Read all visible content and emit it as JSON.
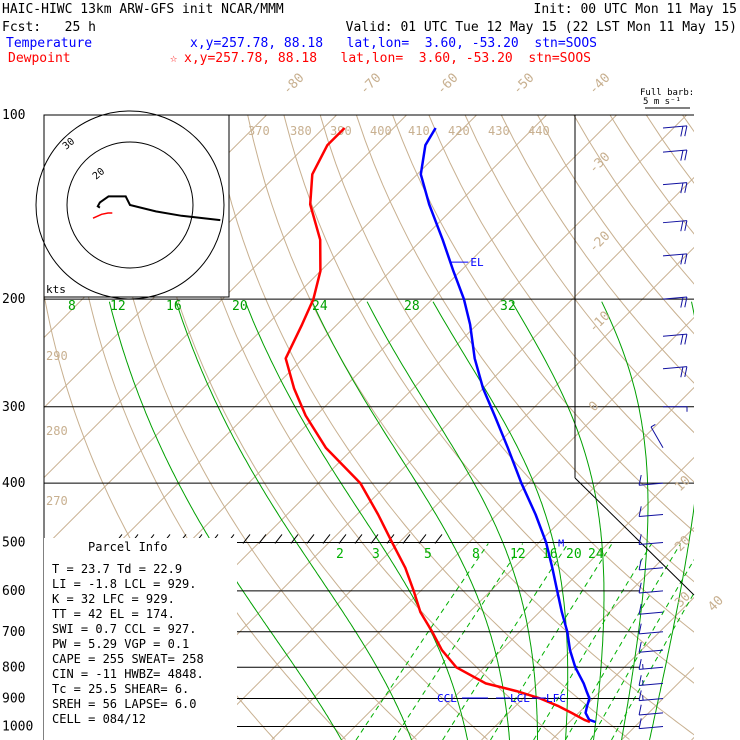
{
  "header": {
    "model": "HAIC-HIWC 13km ARW-GFS init  NCAR/MMM",
    "init": "Init: 00 UTC Mon 11 May 15",
    "fcst": "Fcst:   25 h",
    "valid": "Valid: 01 UTC Tue 12 May 15 (22 LST Mon 11 May 15)",
    "temp_label": "Temperature",
    "temp_info": "x,y=257.78, 88.18   lat,lon=  3.60, -53.20  stn=SOOS",
    "dew_label": "Dewpoint",
    "dew_marker": "☆",
    "dew_info": "x,y=257.78, 88.18   lat,lon=  3.60, -53.20  stn=SOOS"
  },
  "colors": {
    "temperature": "#0000ff",
    "dewpoint": "#ff0000",
    "isotherm": "#c8b090",
    "theta": "#c8b090",
    "moist_adiabat": "#00a000",
    "mixing_ratio": "#00b000",
    "wind": "#1010a0",
    "grid": "#000000"
  },
  "hodograph": {
    "ring_labels": [
      "30",
      "20"
    ],
    "unit": "kts"
  },
  "parcel": {
    "title": "Parcel Info",
    "rows": [
      "T  =   23.7  Td =  22.9",
      "LI =   -1.8  LCL =  929.",
      "K  =     32  LFC =  929.",
      "TT =     42  EL  =  174.",
      "SWI =   0.7  CCL =  927.",
      "PW =   5.29  VGP =   0.1",
      "CAPE =  255  SWEAT=  258",
      "CIN =   -11  HWBZ= 4848.",
      "Tc =   25.5  SHEAR=    6.",
      "SREH =   56  LAPSE=  6.0",
      "CELL = 084/12"
    ]
  },
  "barb_legend": {
    "title": "Full barb:",
    "units": "5 m s⁻¹"
  },
  "markers": {
    "el": "EL",
    "m": "M",
    "ccl": "CCL",
    "lcl": "LCL",
    "lfc": "LFC"
  },
  "chart_data": {
    "type": "line",
    "title": "HAIC-HIWC 13km ARW-GFS init  NCAR/MMM",
    "xlabel": "",
    "ylabel": "",
    "y_scale": "log",
    "pressure_levels": [
      "100",
      "200",
      "300",
      "400",
      "500",
      "600",
      "700",
      "800",
      "900",
      "1000"
    ],
    "isotherm_labels": [
      "-80",
      "-70",
      "-60",
      "-50",
      "-40",
      "-30",
      "-20",
      "-10",
      "0",
      "10",
      "20",
      "30",
      "40"
    ],
    "theta_labels": [
      "370",
      "380",
      "390",
      "400",
      "410",
      "420",
      "430",
      "440",
      "290",
      "280",
      "270"
    ],
    "mixing_ratio_labels_top": [
      "8",
      "12",
      "16",
      "20",
      "24",
      "28",
      "32"
    ],
    "mixing_ratio_labels_lower": [
      "2",
      "3",
      "5",
      "8",
      "12",
      "16",
      "20",
      "24"
    ],
    "series": [
      {
        "name": "Temperature",
        "pressure_hPa": [
          983,
          975,
          950,
          925,
          900,
          875,
          850,
          800,
          750,
          700,
          650,
          600,
          550,
          500,
          450,
          400,
          350,
          310,
          280,
          250,
          220,
          200,
          180,
          160,
          140,
          125,
          112,
          105
        ],
        "temp_C": [
          23.7,
          22.5,
          21.0,
          20.2,
          19.5,
          18.0,
          16.5,
          13.0,
          9.8,
          6.8,
          3.2,
          -0.5,
          -4.5,
          -9.0,
          -14.5,
          -21.0,
          -28.0,
          -34.5,
          -40.0,
          -45.5,
          -51.0,
          -55.5,
          -61.0,
          -67.0,
          -74.0,
          -79.5,
          -83.0,
          -84.0
        ]
      },
      {
        "name": "Dewpoint",
        "pressure_hPa": [
          983,
          975,
          950,
          925,
          900,
          875,
          850,
          800,
          750,
          700,
          650,
          600,
          550,
          500,
          450,
          400,
          350,
          310,
          280,
          250,
          220,
          200,
          180,
          160,
          140,
          125,
          112,
          105
        ],
        "temp_C": [
          22.9,
          21.8,
          19.0,
          16.0,
          12.5,
          8.0,
          2.5,
          -4.0,
          -8.5,
          -12.5,
          -17.0,
          -21.0,
          -25.5,
          -31.0,
          -37.0,
          -44.0,
          -54.0,
          -61.5,
          -67.0,
          -72.5,
          -75.0,
          -77.0,
          -80.0,
          -84.5,
          -91.0,
          -95.0,
          -97.0,
          -97.0
        ]
      }
    ],
    "winds": [
      {
        "p": 1000,
        "speed_ms": 7,
        "dir_deg": 95
      },
      {
        "p": 950,
        "speed_ms": 7,
        "dir_deg": 95
      },
      {
        "p": 900,
        "speed_ms": 8,
        "dir_deg": 95
      },
      {
        "p": 850,
        "speed_ms": 8,
        "dir_deg": 95
      },
      {
        "p": 800,
        "speed_ms": 8,
        "dir_deg": 95
      },
      {
        "p": 750,
        "speed_ms": 7,
        "dir_deg": 95
      },
      {
        "p": 700,
        "speed_ms": 7,
        "dir_deg": 95
      },
      {
        "p": 650,
        "speed_ms": 6,
        "dir_deg": 95
      },
      {
        "p": 600,
        "speed_ms": 6,
        "dir_deg": 95
      },
      {
        "p": 550,
        "speed_ms": 5,
        "dir_deg": 95
      },
      {
        "p": 500,
        "speed_ms": 5,
        "dir_deg": 95
      },
      {
        "p": 450,
        "speed_ms": 5,
        "dir_deg": 95
      },
      {
        "p": 400,
        "speed_ms": 5,
        "dir_deg": 95
      },
      {
        "p": 350,
        "speed_ms": 3,
        "dir_deg": 30
      },
      {
        "p": 300,
        "speed_ms": 4,
        "dir_deg": 270
      },
      {
        "p": 260,
        "speed_ms": 10,
        "dir_deg": 275
      },
      {
        "p": 230,
        "speed_ms": 10,
        "dir_deg": 275
      },
      {
        "p": 200,
        "speed_ms": 10,
        "dir_deg": 275
      },
      {
        "p": 170,
        "speed_ms": 10,
        "dir_deg": 275
      },
      {
        "p": 150,
        "speed_ms": 10,
        "dir_deg": 275
      },
      {
        "p": 130,
        "speed_ms": 10,
        "dir_deg": 275
      },
      {
        "p": 115,
        "speed_ms": 10,
        "dir_deg": 275
      },
      {
        "p": 105,
        "speed_ms": 10,
        "dir_deg": 275
      }
    ],
    "hodograph_uv": [
      [
        -7,
        0.6
      ],
      [
        -7.5,
        0.3
      ],
      [
        -7,
        -0.6
      ],
      [
        -5,
        -2
      ],
      [
        -1,
        -2
      ],
      [
        0,
        0
      ],
      [
        6,
        1.5
      ],
      [
        12,
        2.5
      ],
      [
        21,
        3.5
      ]
    ],
    "hodograph_low_uv": [
      [
        -5,
        1.2
      ],
      [
        -3,
        0.3
      ],
      [
        -1.5,
        0
      ],
      [
        -0.5,
        0
      ]
    ],
    "grid": true,
    "legend_position": "top-left"
  }
}
